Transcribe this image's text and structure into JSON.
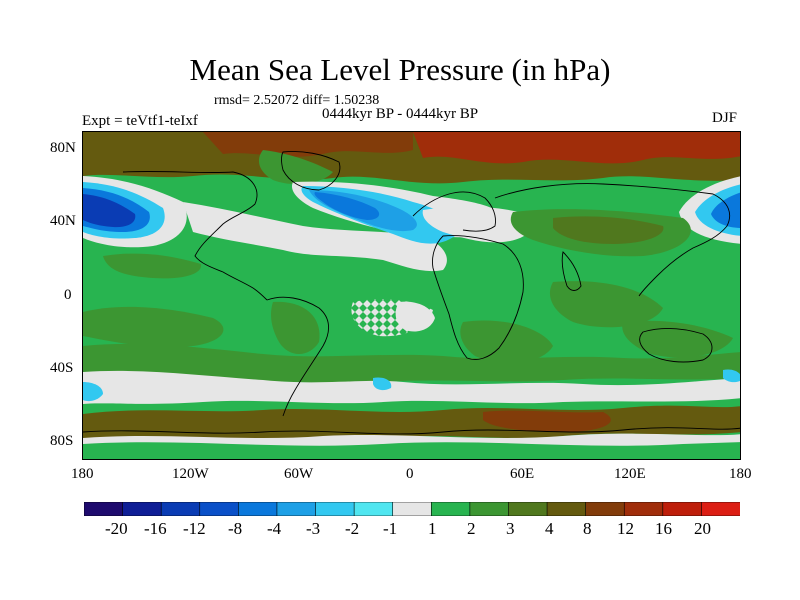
{
  "title": "Mean Sea Level Pressure (in hPa)",
  "stats_text": "rmsd= 2.52072 diff= 1.50238",
  "period_text": "0444kyr BP - 0444kyr BP",
  "expt_text": "Expt = teVtf1-teIxf",
  "season_text": "DJF",
  "y_axis_labels": [
    "80N",
    "40N",
    "0",
    "40S",
    "80S"
  ],
  "x_axis_labels": [
    "180",
    "120W",
    "60W",
    "0",
    "60E",
    "120E",
    "180"
  ],
  "colorbar": {
    "labels": [
      "-20",
      "-16",
      "-12",
      "-8",
      "-4",
      "-3",
      "-2",
      "-1",
      "1",
      "2",
      "3",
      "4",
      "8",
      "12",
      "16",
      "20"
    ],
    "colors": [
      "#1e0a6e",
      "#0f1e96",
      "#0a3cb4",
      "#0a50c8",
      "#0a78dc",
      "#1ea0e6",
      "#32c8f0",
      "#50e6f0",
      "#e6e6e6",
      "#28b450",
      "#3c9632",
      "#50781e",
      "#645a0f",
      "#823c0a",
      "#a02d0a",
      "#be1e0a",
      "#dc1e14"
    ]
  },
  "colors": {
    "land_green": "#28b450",
    "dark_green": "#3c9632",
    "olive": "#50781e",
    "brown": "#645a0f",
    "rust": "#823c0a",
    "red_brown": "#a02d0a",
    "neutral": "#e6e6e6",
    "cyan": "#32c8f0",
    "light_blue": "#1ea0e6",
    "mid_blue": "#0a78dc",
    "blue": "#0a50c8",
    "deep_blue": "#0a3cb4"
  }
}
